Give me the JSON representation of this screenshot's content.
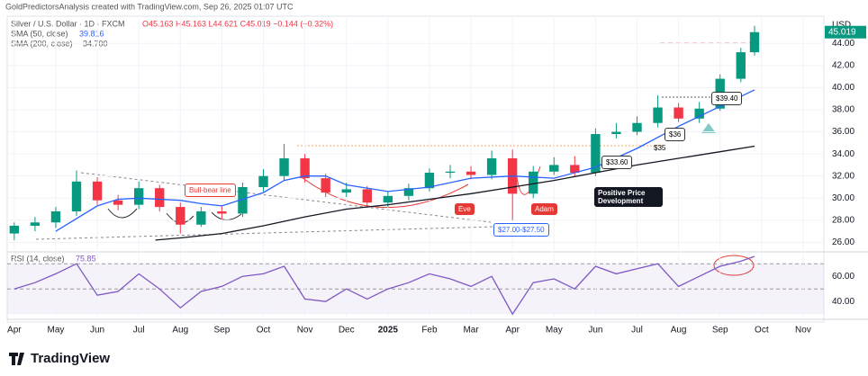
{
  "header": {
    "credit": "GoldPredictorsAnalysis created with TradingView.com, Sep 26, 2025 01:07 UTC",
    "brand": "TradingView"
  },
  "chart_data": {
    "type": "candlestick",
    "title": "Silver / U.S. Dollar · 1D · FXCM",
    "ohlc_text": "O45.163 H45.163 L44.621 C45.019 −0.144 (−0.32%)",
    "currency": "USD",
    "last_price_label": "45.019",
    "up_color": "#089981",
    "down_color": "#f23645",
    "candles": {
      "x": [
        0,
        0.5,
        1,
        1.5,
        2,
        2.5,
        3,
        3.5,
        4,
        4.5,
        5,
        5.5,
        6,
        6.5,
        7,
        7.5,
        8,
        8.5,
        9,
        9.5,
        10,
        10.5,
        11,
        11.5,
        12,
        12.5,
        13,
        13.5,
        14,
        14.5,
        15,
        15.5,
        16,
        16.5,
        17,
        17.5,
        17.83
      ],
      "open": [
        26.8,
        27.5,
        27.8,
        28.8,
        31.5,
        29.8,
        29.4,
        30.9,
        29.2,
        27.6,
        28.8,
        28.6,
        31.0,
        32.0,
        33.6,
        31.8,
        30.5,
        30.8,
        29.6,
        30.2,
        30.9,
        32.3,
        32.4,
        32.1,
        33.6,
        30.4,
        32.4,
        33.0,
        32.3,
        35.8,
        36.0,
        36.8,
        38.2,
        37.2,
        38.1,
        40.8,
        43.2
      ],
      "high": [
        27.8,
        28.3,
        29.2,
        32.5,
        31.9,
        30.3,
        31.5,
        31.2,
        29.6,
        29.2,
        29.3,
        31.4,
        32.6,
        34.9,
        34.0,
        32.2,
        31.4,
        31.1,
        30.6,
        31.3,
        32.7,
        33.0,
        32.9,
        34.3,
        34.4,
        32.9,
        33.7,
        33.8,
        36.3,
        36.8,
        37.4,
        39.3,
        38.6,
        38.7,
        41.2,
        43.6,
        45.6
      ],
      "low": [
        26.2,
        27.0,
        27.3,
        28.4,
        29.4,
        28.9,
        29.0,
        28.8,
        26.8,
        27.4,
        28.1,
        28.3,
        30.6,
        31.6,
        31.4,
        30.1,
        30.1,
        29.2,
        29.2,
        29.8,
        30.6,
        31.8,
        31.7,
        31.7,
        28.0,
        30.0,
        32.1,
        32.0,
        32.0,
        35.4,
        35.7,
        36.4,
        36.9,
        36.8,
        37.9,
        40.5,
        42.9
      ],
      "close": [
        27.5,
        27.8,
        28.8,
        31.5,
        29.8,
        29.4,
        30.9,
        29.2,
        27.6,
        28.8,
        28.6,
        31.0,
        32.0,
        33.6,
        31.8,
        30.5,
        30.8,
        29.6,
        30.2,
        30.9,
        32.3,
        32.4,
        32.1,
        33.6,
        30.4,
        32.4,
        33.0,
        32.3,
        35.8,
        36.0,
        36.8,
        38.2,
        37.2,
        38.1,
        40.8,
        43.2,
        45.019
      ]
    },
    "series": [
      {
        "name": "SMA (50, close)",
        "value_label": "39.816",
        "color": "#2962ff",
        "x": [
          1,
          2,
          2.5,
          3,
          4,
          4.5,
          5,
          6,
          6.5,
          7,
          7.5,
          8,
          9,
          10,
          11,
          12,
          13,
          14,
          15,
          16,
          17,
          17.83
        ],
        "values": [
          27.0,
          29.3,
          29.9,
          30.0,
          29.8,
          29.5,
          29.3,
          30.5,
          31.6,
          32.0,
          32.0,
          31.2,
          30.6,
          31.0,
          31.8,
          32.0,
          31.8,
          32.8,
          34.5,
          36.5,
          38.3,
          39.8
        ]
      },
      {
        "name": "SMA (200, close)",
        "value_label": "34.700",
        "color": "#131722",
        "x": [
          3.4,
          4,
          5,
          6,
          7,
          8,
          9,
          10,
          11,
          12,
          13,
          14,
          15,
          16,
          17,
          17.83
        ],
        "values": [
          26.2,
          26.4,
          26.8,
          27.5,
          28.3,
          29.0,
          29.4,
          29.9,
          30.4,
          31.0,
          31.6,
          32.3,
          33.0,
          33.6,
          34.2,
          34.7
        ]
      }
    ],
    "annotations": [
      "Bull-bear line",
      "Eve",
      "Adam",
      "Positive Price Development",
      "$27.00-$27.50",
      "$33.60",
      "$36",
      "$35",
      "$39.40"
    ],
    "xlim": [
      -0.17,
      19.5
    ],
    "xticks": [
      {
        "value": 0,
        "label": "Apr"
      },
      {
        "value": 1,
        "label": "May"
      },
      {
        "value": 2,
        "label": "Jun"
      },
      {
        "value": 3,
        "label": "Jul"
      },
      {
        "value": 4,
        "label": "Aug"
      },
      {
        "value": 5,
        "label": "Sep"
      },
      {
        "value": 6,
        "label": "Oct"
      },
      {
        "value": 7,
        "label": "Nov"
      },
      {
        "value": 8,
        "label": "Dec"
      },
      {
        "value": 9,
        "label": "2025"
      },
      {
        "value": 10,
        "label": "Feb"
      },
      {
        "value": 11,
        "label": "Mar"
      },
      {
        "value": 12,
        "label": "Apr"
      },
      {
        "value": 13,
        "label": "May"
      },
      {
        "value": 14,
        "label": "Jun"
      },
      {
        "value": 15,
        "label": "Jul"
      },
      {
        "value": 16,
        "label": "Aug"
      },
      {
        "value": 17,
        "label": "Sep"
      },
      {
        "value": 18,
        "label": "Oct"
      },
      {
        "value": 19,
        "label": "Nov"
      }
    ],
    "ylim": [
      25.3,
      46.3
    ],
    "yticks": [
      {
        "value": 26,
        "label": "26.00"
      },
      {
        "value": 28,
        "label": "28.00"
      },
      {
        "value": 30,
        "label": "30.00"
      },
      {
        "value": 32,
        "label": "32.00"
      },
      {
        "value": 34,
        "label": "34.00"
      },
      {
        "value": 36,
        "label": "36.00"
      },
      {
        "value": 38,
        "label": "38.00"
      },
      {
        "value": 40,
        "label": "40.00"
      },
      {
        "value": 42,
        "label": "42.00"
      },
      {
        "value": 44,
        "label": "44.00"
      }
    ],
    "grid": true,
    "rsi": {
      "name": "RSI (14, close)",
      "value_label": "75.85",
      "color": "#7e57c2",
      "values": [
        50,
        55,
        62,
        70,
        45,
        48,
        62,
        50,
        35,
        48,
        52,
        60,
        62,
        68,
        42,
        40,
        50,
        42,
        50,
        55,
        62,
        58,
        52,
        60,
        30,
        55,
        58,
        50,
        68,
        62,
        66,
        70,
        52,
        60,
        68,
        72,
        75.85
      ],
      "ylim": [
        28,
        78
      ],
      "band": [
        30,
        70
      ],
      "midline": 50,
      "yticks": [
        {
          "value": 40,
          "label": "40.00"
        },
        {
          "value": 60,
          "label": "60.00"
        }
      ]
    }
  }
}
